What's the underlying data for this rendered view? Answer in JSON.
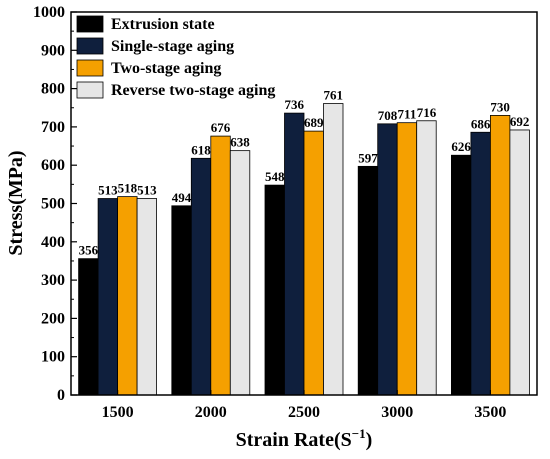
{
  "chart_data": {
    "type": "bar",
    "xlabel": "Strain Rate(S",
    "xlabel_sup": "−1",
    "xlabel_suffix": ")",
    "ylabel": "Stress(MPa)",
    "ylim": [
      0,
      1000
    ],
    "yticks": [
      0,
      100,
      200,
      300,
      400,
      500,
      600,
      700,
      800,
      900,
      1000
    ],
    "categories": [
      "1500",
      "2000",
      "2500",
      "3000",
      "3500"
    ],
    "legend_position": "top-left",
    "grid": false,
    "series": [
      {
        "name": "Extrusion state",
        "color": "#000000",
        "values": [
          356,
          494,
          548,
          597,
          626
        ]
      },
      {
        "name": "Single-stage aging",
        "color": "#0f1f3d",
        "values": [
          513,
          618,
          736,
          708,
          686
        ]
      },
      {
        "name": "Two-stage aging",
        "color": "#f5a000",
        "values": [
          518,
          676,
          689,
          711,
          730
        ]
      },
      {
        "name": "Reverse two-stage aging",
        "color": "#e6e6e6",
        "values": [
          513,
          638,
          761,
          716,
          692
        ]
      }
    ]
  }
}
